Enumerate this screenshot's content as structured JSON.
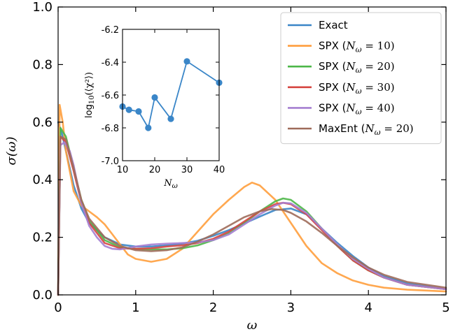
{
  "chart_data": [
    {
      "type": "line",
      "xlabel": "ω",
      "ylabel": "σ(ω)",
      "xlim": [
        0,
        5
      ],
      "ylim": [
        0,
        1.0
      ],
      "xticks": [
        "0",
        "1",
        "2",
        "3",
        "4",
        "5"
      ],
      "yticks": [
        "0.0",
        "0.2",
        "0.4",
        "0.6",
        "0.8",
        "1.0"
      ],
      "grid": false,
      "legend_position": "top-right",
      "series": [
        {
          "name": "Exact",
          "color": "#3a86c8",
          "x": [
            0.0,
            0.05,
            0.1,
            0.2,
            0.3,
            0.4,
            0.6,
            0.8,
            1.0,
            1.2,
            1.4,
            1.6,
            1.8,
            2.0,
            2.2,
            2.4,
            2.6,
            2.8,
            3.0,
            3.2,
            3.4,
            3.6,
            3.8,
            4.0,
            4.2,
            4.5,
            5.0
          ],
          "y": [
            0.6,
            0.56,
            0.5,
            0.38,
            0.3,
            0.25,
            0.2,
            0.175,
            0.168,
            0.168,
            0.172,
            0.178,
            0.188,
            0.205,
            0.225,
            0.248,
            0.272,
            0.295,
            0.3,
            0.28,
            0.23,
            0.18,
            0.135,
            0.095,
            0.065,
            0.04,
            0.02
          ]
        },
        {
          "name": "SPX (N_ω = 10)",
          "label_main": "SPX (",
          "label_math": "N",
          "label_sub": "ω",
          "label_tail": " = 10)",
          "color": "#ff9e3d",
          "x": [
            0.0,
            0.02,
            0.06,
            0.1,
            0.2,
            0.3,
            0.4,
            0.5,
            0.6,
            0.7,
            0.8,
            0.9,
            1.0,
            1.2,
            1.4,
            1.6,
            1.8,
            2.0,
            2.2,
            2.4,
            2.5,
            2.6,
            2.8,
            3.0,
            3.2,
            3.4,
            3.6,
            3.8,
            4.0,
            4.2,
            4.5,
            5.0
          ],
          "y": [
            0.0,
            0.66,
            0.6,
            0.5,
            0.36,
            0.31,
            0.29,
            0.27,
            0.245,
            0.21,
            0.175,
            0.14,
            0.125,
            0.115,
            0.125,
            0.16,
            0.22,
            0.28,
            0.33,
            0.375,
            0.39,
            0.38,
            0.33,
            0.25,
            0.17,
            0.11,
            0.075,
            0.05,
            0.035,
            0.025,
            0.018,
            0.012
          ]
        },
        {
          "name": "SPX (N_ω = 20)",
          "label_main": "SPX (",
          "label_math": "N",
          "label_sub": "ω",
          "label_tail": " = 20)",
          "color": "#4cb748",
          "x": [
            0.0,
            0.03,
            0.1,
            0.2,
            0.3,
            0.4,
            0.6,
            0.8,
            1.0,
            1.2,
            1.4,
            1.6,
            1.8,
            2.0,
            2.2,
            2.4,
            2.6,
            2.8,
            2.9,
            3.0,
            3.2,
            3.4,
            3.6,
            3.8,
            4.0,
            4.2,
            4.5,
            5.0
          ],
          "y": [
            0.0,
            0.58,
            0.55,
            0.44,
            0.33,
            0.26,
            0.19,
            0.165,
            0.16,
            0.158,
            0.158,
            0.162,
            0.172,
            0.19,
            0.215,
            0.25,
            0.29,
            0.325,
            0.335,
            0.33,
            0.29,
            0.23,
            0.17,
            0.12,
            0.085,
            0.06,
            0.035,
            0.02
          ]
        },
        {
          "name": "SPX (N_ω = 30)",
          "label_main": "SPX (",
          "label_math": "N",
          "label_sub": "ω",
          "label_tail": " = 30)",
          "color": "#d64541",
          "x": [
            0.0,
            0.03,
            0.1,
            0.2,
            0.3,
            0.4,
            0.6,
            0.8,
            1.0,
            1.2,
            1.4,
            1.6,
            1.8,
            2.0,
            2.2,
            2.4,
            2.6,
            2.8,
            2.9,
            3.0,
            3.2,
            3.4,
            3.6,
            3.8,
            4.0,
            4.2,
            4.5,
            5.0
          ],
          "y": [
            0.0,
            0.55,
            0.53,
            0.43,
            0.32,
            0.25,
            0.18,
            0.162,
            0.16,
            0.162,
            0.168,
            0.172,
            0.18,
            0.195,
            0.22,
            0.255,
            0.29,
            0.315,
            0.32,
            0.315,
            0.28,
            0.225,
            0.17,
            0.12,
            0.085,
            0.06,
            0.035,
            0.02
          ]
        },
        {
          "name": "SPX (N_ω = 40)",
          "label_main": "SPX (",
          "label_math": "N",
          "label_sub": "ω",
          "label_tail": " = 40)",
          "color": "#a57fd1",
          "x": [
            0.0,
            0.03,
            0.08,
            0.15,
            0.2,
            0.3,
            0.4,
            0.5,
            0.6,
            0.7,
            0.8,
            1.0,
            1.2,
            1.4,
            1.6,
            1.8,
            2.0,
            2.2,
            2.4,
            2.6,
            2.8,
            2.9,
            3.0,
            3.2,
            3.4,
            3.6,
            3.8,
            4.0,
            4.2,
            4.5,
            5.0
          ],
          "y": [
            0.0,
            0.52,
            0.53,
            0.5,
            0.45,
            0.32,
            0.24,
            0.2,
            0.17,
            0.16,
            0.158,
            0.168,
            0.175,
            0.178,
            0.18,
            0.182,
            0.19,
            0.21,
            0.245,
            0.28,
            0.31,
            0.32,
            0.318,
            0.285,
            0.23,
            0.175,
            0.125,
            0.09,
            0.06,
            0.035,
            0.02
          ]
        },
        {
          "name": "MaxEnt (N_ω = 20)",
          "label_main": "MaxEnt (",
          "label_math": "N",
          "label_sub": "ω",
          "label_tail": " = 20)",
          "color": "#9e6b5a",
          "x": [
            0.0,
            0.03,
            0.1,
            0.2,
            0.3,
            0.4,
            0.6,
            0.8,
            1.0,
            1.2,
            1.4,
            1.6,
            1.8,
            2.0,
            2.2,
            2.4,
            2.6,
            2.75,
            2.9,
            3.0,
            3.2,
            3.4,
            3.6,
            3.8,
            4.0,
            4.2,
            4.5,
            5.0
          ],
          "y": [
            0.0,
            0.55,
            0.54,
            0.44,
            0.33,
            0.265,
            0.2,
            0.17,
            0.155,
            0.152,
            0.155,
            0.165,
            0.185,
            0.21,
            0.24,
            0.27,
            0.29,
            0.298,
            0.295,
            0.285,
            0.255,
            0.215,
            0.17,
            0.13,
            0.095,
            0.07,
            0.045,
            0.025
          ]
        }
      ],
      "ticks_direction": "in"
    },
    {
      "type": "line",
      "inset": true,
      "xlabel_main": "N",
      "xlabel_sub": "ω",
      "ylabel_main": "log",
      "ylabel_sub": "10",
      "ylabel_tail": "(⟨χ²⟩)",
      "xlim": [
        10,
        40
      ],
      "ylim": [
        -7.0,
        -6.2
      ],
      "xticks": [
        "10",
        "20",
        "30",
        "40"
      ],
      "yticks": [
        "-7.0",
        "-6.8",
        "-6.6",
        "-6.4",
        "-6.2"
      ],
      "series": [
        {
          "color": "#3a86c8",
          "x": [
            10,
            12,
            15,
            18,
            20,
            25,
            30,
            40
          ],
          "y": [
            -6.67,
            -6.69,
            -6.7,
            -6.8,
            -6.615,
            -6.745,
            -6.395,
            -6.525
          ]
        }
      ]
    }
  ]
}
